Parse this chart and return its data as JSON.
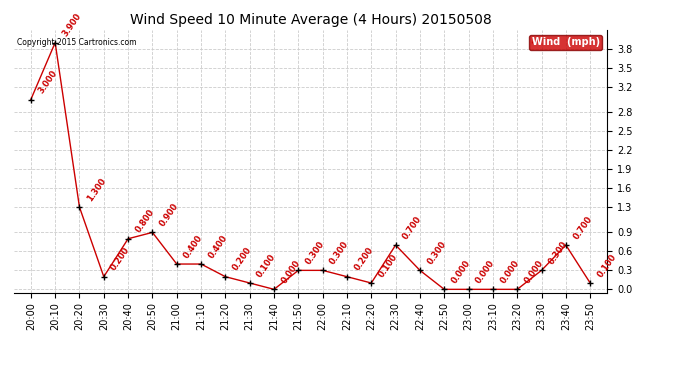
{
  "title": "Wind Speed 10 Minute Average (4 Hours) 20150508",
  "copyright_text": "Copyright 2015 Cartronics.com",
  "legend_label": "Wind  (mph)",
  "x_labels": [
    "20:00",
    "20:10",
    "20:20",
    "20:30",
    "20:40",
    "20:50",
    "21:00",
    "21:10",
    "21:20",
    "21:30",
    "21:40",
    "21:50",
    "22:00",
    "22:10",
    "22:20",
    "22:30",
    "22:40",
    "22:50",
    "23:00",
    "23:10",
    "23:20",
    "23:30",
    "23:40",
    "23:50"
  ],
  "y_values": [
    3.0,
    3.9,
    1.3,
    0.2,
    0.8,
    0.9,
    0.4,
    0.4,
    0.2,
    0.1,
    0.0,
    0.3,
    0.3,
    0.2,
    0.1,
    0.7,
    0.3,
    0.0,
    0.0,
    0.0,
    0.0,
    0.3,
    0.7,
    0.1
  ],
  "data_labels": [
    "3.000",
    "3.900",
    "1.300",
    "0.200",
    "0.800",
    "0.900",
    "0.400",
    "0.400",
    "0.200",
    "0.100",
    "0.000",
    "0.300",
    "0.300",
    "0.200",
    "0.100",
    "0.700",
    "0.300",
    "0.000",
    "0.000",
    "0.000",
    "0.000",
    "0.300",
    "0.700",
    "0.100"
  ],
  "line_color": "#cc0000",
  "marker_color": "#000000",
  "label_color": "#cc0000",
  "bg_color": "#ffffff",
  "grid_color": "#cccccc",
  "ylim": [
    -0.05,
    4.1
  ],
  "yticks": [
    0.0,
    0.3,
    0.6,
    0.9,
    1.3,
    1.6,
    1.9,
    2.2,
    2.5,
    2.8,
    3.2,
    3.5,
    3.8
  ],
  "yticklabels": [
    "0.0",
    "0.3",
    "0.6",
    "0.9",
    "1.3",
    "1.6",
    "1.9",
    "2.2",
    "2.5",
    "2.8",
    "3.2",
    "3.5",
    "3.8"
  ],
  "title_fontsize": 10,
  "label_fontsize": 6,
  "tick_fontsize": 7,
  "legend_bg": "#cc0000",
  "legend_fg": "#ffffff",
  "fig_width": 6.9,
  "fig_height": 3.75,
  "dpi": 100
}
